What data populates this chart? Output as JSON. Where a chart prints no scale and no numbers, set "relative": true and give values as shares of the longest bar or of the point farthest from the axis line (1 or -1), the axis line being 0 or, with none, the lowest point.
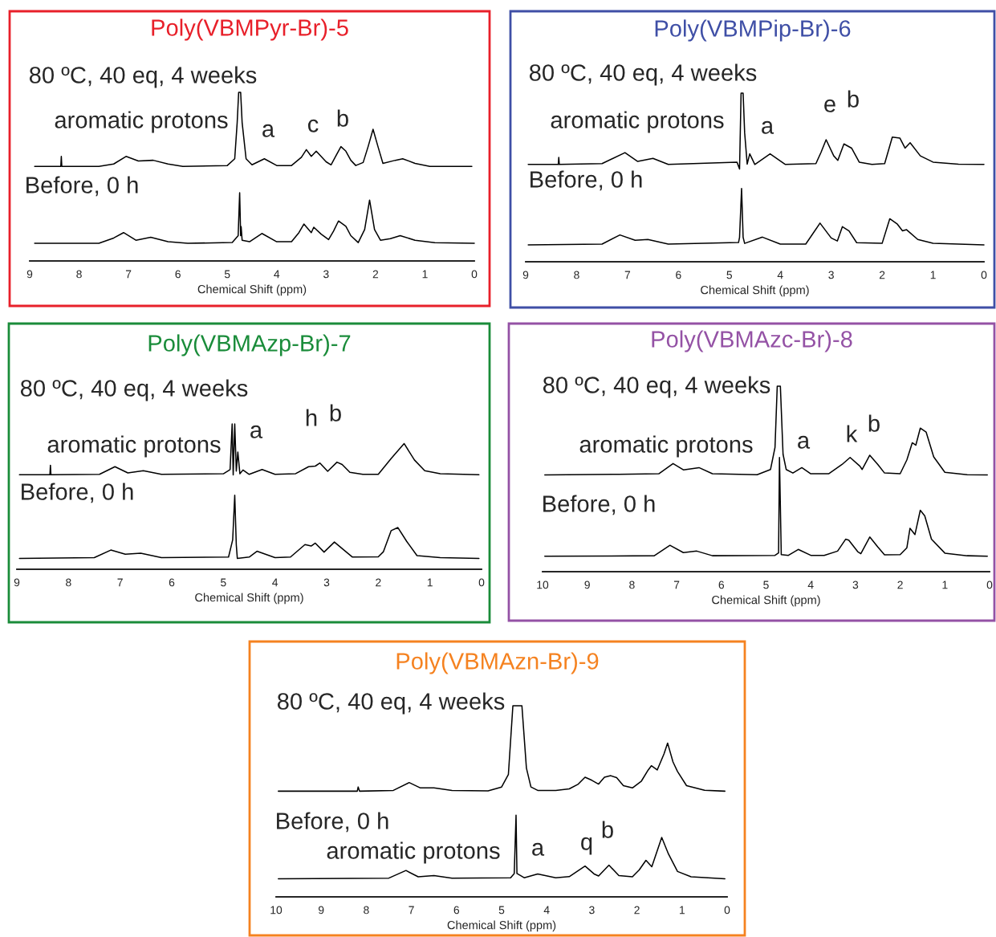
{
  "chart_data": [
    {
      "type": "line",
      "title": "Poly(VBMPyr-Br)-5",
      "xlabel": "Chemical Shift (ppm)",
      "relative": true,
      "xlim": [
        9,
        0
      ],
      "xticks": [
        9,
        8,
        7,
        6,
        5,
        4,
        3,
        2,
        1,
        0
      ],
      "series": [
        {
          "color": "#000000",
          "x": [
            8.9,
            8.37,
            8.36,
            8.35,
            7.6,
            7.3,
            7.05,
            6.8,
            6.5,
            6.2,
            5.9,
            5.0,
            4.85,
            4.8,
            4.77,
            4.73,
            4.7,
            4.62,
            4.5,
            4.25,
            4.0,
            3.7,
            3.5,
            3.4,
            3.3,
            3.2,
            3.0,
            2.9,
            2.8,
            2.7,
            2.6,
            2.5,
            2.4,
            2.25,
            2.15,
            2.05,
            1.95,
            1.85,
            1.6,
            1.45,
            1.2,
            0.9,
            0.05
          ],
          "values": [
            0.561,
            0.561,
            0.62,
            0.561,
            0.561,
            0.575,
            0.62,
            0.593,
            0.597,
            0.575,
            0.561,
            0.566,
            0.606,
            0.821,
            1.0,
            1.0,
            0.821,
            0.606,
            0.57,
            0.606,
            0.566,
            0.566,
            0.615,
            0.66,
            0.62,
            0.651,
            0.588,
            0.57,
            0.624,
            0.678,
            0.651,
            0.597,
            0.566,
            0.584,
            0.678,
            0.781,
            0.678,
            0.579,
            0.597,
            0.606,
            0.579,
            0.561,
            0.561
          ]
        },
        {
          "color": "#000000",
          "x": [
            8.9,
            7.6,
            7.3,
            7.1,
            6.85,
            6.55,
            6.2,
            5.8,
            4.9,
            4.78,
            4.75,
            4.73,
            4.72,
            4.7,
            4.55,
            4.3,
            4.0,
            3.7,
            3.55,
            3.45,
            3.3,
            3.25,
            3.1,
            2.95,
            2.85,
            2.75,
            2.6,
            2.5,
            2.35,
            2.22,
            2.12,
            2.02,
            1.9,
            1.7,
            1.5,
            1.2,
            0.8,
            0.0
          ],
          "values": [
            0.105,
            0.105,
            0.136,
            0.168,
            0.123,
            0.141,
            0.114,
            0.105,
            0.109,
            0.15,
            0.405,
            0.15,
            0.203,
            0.123,
            0.114,
            0.163,
            0.114,
            0.114,
            0.168,
            0.219,
            0.168,
            0.2,
            0.159,
            0.127,
            0.177,
            0.237,
            0.205,
            0.15,
            0.109,
            0.186,
            0.361,
            0.186,
            0.123,
            0.132,
            0.15,
            0.123,
            0.108,
            0.105
          ]
        }
      ],
      "annotations": [
        "80 ºC, 40 eq, 4 weeks",
        "Before, 0 h",
        "aromatic protons",
        "a",
        "c",
        "b"
      ]
    },
    {
      "type": "line",
      "title": "Poly(VBMPip-Br)-6",
      "xlabel": "Chemical Shift (ppm)",
      "relative": true,
      "xlim": [
        9,
        0
      ],
      "xticks": [
        9,
        8,
        7,
        6,
        5,
        4,
        3,
        2,
        1,
        0
      ],
      "series": [
        {
          "color": "#000000",
          "x": [
            8.95,
            8.36,
            8.35,
            8.34,
            7.5,
            7.05,
            6.8,
            6.5,
            6.2,
            4.85,
            4.8,
            4.77,
            4.73,
            4.7,
            4.65,
            4.6,
            4.5,
            4.2,
            3.9,
            3.3,
            3.2,
            3.1,
            2.95,
            2.87,
            2.75,
            2.6,
            2.45,
            2.2,
            1.95,
            1.8,
            1.65,
            1.55,
            1.45,
            1.25,
            1.0,
            0.5,
            0.0
          ],
          "values": [
            0.577,
            0.577,
            0.619,
            0.577,
            0.582,
            0.647,
            0.595,
            0.613,
            0.577,
            0.591,
            0.55,
            1.0,
            1.0,
            0.766,
            0.579,
            0.64,
            0.577,
            0.64,
            0.577,
            0.582,
            0.649,
            0.724,
            0.628,
            0.601,
            0.699,
            0.674,
            0.591,
            0.577,
            0.582,
            0.739,
            0.733,
            0.674,
            0.706,
            0.628,
            0.591,
            0.579,
            0.577
          ]
        },
        {
          "color": "#000000",
          "x": [
            8.95,
            7.5,
            7.15,
            6.85,
            6.6,
            6.2,
            4.82,
            4.8,
            4.76,
            4.73,
            4.7,
            4.35,
            4.0,
            3.5,
            3.22,
            3.0,
            2.88,
            2.78,
            2.65,
            2.5,
            2.0,
            1.85,
            1.7,
            1.6,
            1.52,
            1.3,
            1.0,
            0.0
          ],
          "values": [
            0.1,
            0.105,
            0.159,
            0.127,
            0.132,
            0.105,
            0.114,
            0.145,
            0.435,
            0.145,
            0.109,
            0.146,
            0.105,
            0.105,
            0.229,
            0.141,
            0.123,
            0.208,
            0.183,
            0.113,
            0.109,
            0.255,
            0.223,
            0.183,
            0.19,
            0.132,
            0.109,
            0.1
          ]
        }
      ],
      "annotations": [
        "80 ºC, 40 eq, 4 weeks",
        "Before, 0 h",
        "aromatic protons",
        "a",
        "e",
        "b"
      ]
    },
    {
      "type": "line",
      "title": "Poly(VBMAzp-Br)-7",
      "xlabel": "Chemical Shift (ppm)",
      "relative": true,
      "xlim": [
        9,
        0
      ],
      "xticks": [
        9,
        8,
        7,
        6,
        5,
        4,
        3,
        2,
        1,
        0
      ],
      "series": [
        {
          "color": "#000000",
          "x": [
            8.95,
            8.36,
            8.35,
            8.34,
            7.4,
            7.1,
            6.85,
            6.55,
            6.2,
            5.0,
            4.87,
            4.83,
            4.81,
            4.78,
            4.75,
            4.72,
            4.68,
            4.62,
            4.5,
            4.25,
            4.0,
            3.6,
            3.35,
            3.22,
            3.13,
            2.98,
            2.8,
            2.7,
            2.55,
            2.3,
            2.0,
            1.75,
            1.5,
            1.3,
            1.1,
            0.8,
            0.05
          ],
          "values": [
            0.65,
            0.65,
            0.716,
            0.65,
            0.653,
            0.706,
            0.663,
            0.678,
            0.653,
            0.657,
            0.686,
            1.0,
            0.649,
            1.0,
            0.676,
            0.806,
            0.657,
            0.683,
            0.653,
            0.686,
            0.653,
            0.658,
            0.706,
            0.71,
            0.731,
            0.674,
            0.737,
            0.721,
            0.667,
            0.653,
            0.653,
            0.763,
            0.865,
            0.752,
            0.678,
            0.657,
            0.65
          ]
        },
        {
          "color": "#000000",
          "x": [
            8.95,
            7.5,
            7.18,
            6.9,
            6.6,
            6.2,
            4.9,
            4.82,
            4.78,
            4.75,
            4.73,
            4.5,
            4.35,
            4.0,
            3.7,
            3.42,
            3.3,
            3.22,
            3.05,
            2.85,
            2.65,
            2.5,
            2.0,
            1.9,
            1.75,
            1.62,
            1.45,
            1.25,
            0.8,
            0.05
          ],
          "values": [
            0.075,
            0.08,
            0.132,
            0.103,
            0.111,
            0.08,
            0.084,
            0.202,
            0.509,
            0.168,
            0.075,
            0.084,
            0.124,
            0.08,
            0.084,
            0.17,
            0.16,
            0.18,
            0.118,
            0.187,
            0.128,
            0.084,
            0.086,
            0.121,
            0.266,
            0.287,
            0.192,
            0.094,
            0.08,
            0.075
          ]
        }
      ],
      "annotations": [
        "80 ºC, 40 eq, 4 weeks",
        "Before, 0 h",
        "aromatic protons",
        "a",
        "h",
        "b"
      ]
    },
    {
      "type": "line",
      "title": "Poly(VBMAzc-Br)-8",
      "xlabel": "Chemical Shift (ppm)",
      "relative": true,
      "xlim": [
        10,
        0
      ],
      "xticks": [
        10,
        9,
        8,
        7,
        6,
        5,
        4,
        3,
        2,
        1,
        0
      ],
      "series": [
        {
          "color": "#000000",
          "x": [
            9.95,
            8.3,
            7.4,
            7.08,
            6.85,
            6.5,
            6.2,
            5.2,
            4.9,
            4.8,
            4.75,
            4.68,
            4.62,
            4.55,
            4.4,
            4.2,
            4.0,
            3.6,
            3.3,
            3.12,
            2.9,
            2.85,
            2.68,
            2.5,
            2.35,
            2.0,
            1.85,
            1.73,
            1.65,
            1.55,
            1.42,
            1.25,
            1.0,
            0.5,
            0.05
          ],
          "values": [
            0.522,
            0.525,
            0.528,
            0.583,
            0.549,
            0.561,
            0.528,
            0.523,
            0.551,
            0.67,
            1.0,
            1.0,
            0.633,
            0.551,
            0.532,
            0.561,
            0.528,
            0.528,
            0.578,
            0.616,
            0.569,
            0.551,
            0.628,
            0.578,
            0.532,
            0.528,
            0.603,
            0.695,
            0.682,
            0.774,
            0.753,
            0.619,
            0.536,
            0.523,
            0.522
          ]
        },
        {
          "color": "#000000",
          "x": [
            9.95,
            7.5,
            7.15,
            6.85,
            6.55,
            6.2,
            4.8,
            4.72,
            4.7,
            4.66,
            4.5,
            4.28,
            4.0,
            3.7,
            3.4,
            3.22,
            3.15,
            2.95,
            2.88,
            2.68,
            2.5,
            2.35,
            2.0,
            1.85,
            1.78,
            1.67,
            1.55,
            1.45,
            1.3,
            1.0,
            0.5,
            0.05
          ],
          "values": [
            0.083,
            0.086,
            0.142,
            0.103,
            0.111,
            0.086,
            0.088,
            0.101,
            0.616,
            0.092,
            0.088,
            0.12,
            0.088,
            0.088,
            0.111,
            0.175,
            0.17,
            0.108,
            0.097,
            0.187,
            0.133,
            0.091,
            0.092,
            0.129,
            0.234,
            0.2,
            0.331,
            0.301,
            0.175,
            0.1,
            0.086,
            0.083
          ]
        }
      ],
      "annotations": [
        "80 ºC, 40 eq, 4 weeks",
        "Before, 0 h",
        "aromatic protons",
        "a",
        "k",
        "b"
      ]
    },
    {
      "type": "line",
      "title": "Poly(VBMAzn-Br)-9",
      "xlabel": "Chemical Shift (ppm)",
      "relative": true,
      "xlim": [
        10,
        0
      ],
      "xticks": [
        10,
        9,
        8,
        7,
        6,
        5,
        4,
        3,
        2,
        1,
        0
      ],
      "series": [
        {
          "color": "#000000",
          "x": [
            9.95,
            8.2,
            8.18,
            8.15,
            7.4,
            7.05,
            6.8,
            6.5,
            6.1,
            5.3,
            5.0,
            4.85,
            4.75,
            4.55,
            4.45,
            4.35,
            4.2,
            3.8,
            3.5,
            3.3,
            3.15,
            3.0,
            2.85,
            2.72,
            2.58,
            2.45,
            2.3,
            2.1,
            1.9,
            1.75,
            1.68,
            1.55,
            1.4,
            1.32,
            1.2,
            1.1,
            0.9,
            0.5,
            0.05
          ],
          "values": [
            0.553,
            0.553,
            0.575,
            0.553,
            0.557,
            0.598,
            0.57,
            0.57,
            0.557,
            0.555,
            0.575,
            0.64,
            1.0,
            1.0,
            0.674,
            0.575,
            0.557,
            0.557,
            0.565,
            0.59,
            0.626,
            0.61,
            0.59,
            0.626,
            0.634,
            0.624,
            0.582,
            0.57,
            0.606,
            0.664,
            0.686,
            0.664,
            0.748,
            0.805,
            0.706,
            0.656,
            0.582,
            0.558,
            0.553
          ]
        },
        {
          "color": "#000000",
          "x": [
            9.95,
            7.5,
            7.12,
            6.85,
            6.5,
            6.1,
            4.8,
            4.72,
            4.68,
            4.66,
            4.5,
            4.2,
            3.8,
            3.5,
            3.15,
            2.95,
            2.85,
            2.62,
            2.4,
            2.1,
            1.95,
            1.8,
            1.67,
            1.45,
            1.3,
            1.1,
            0.8,
            0.05
          ],
          "values": [
            0.095,
            0.098,
            0.138,
            0.105,
            0.111,
            0.098,
            0.1,
            0.122,
            0.427,
            0.122,
            0.1,
            0.12,
            0.1,
            0.106,
            0.161,
            0.12,
            0.109,
            0.166,
            0.111,
            0.105,
            0.141,
            0.191,
            0.158,
            0.311,
            0.224,
            0.133,
            0.105,
            0.095
          ]
        }
      ],
      "annotations": [
        "80 ºC, 40 eq, 4 weeks",
        "Before, 0 h",
        "aromatic protons",
        "a",
        "q",
        "b"
      ]
    }
  ]
}
